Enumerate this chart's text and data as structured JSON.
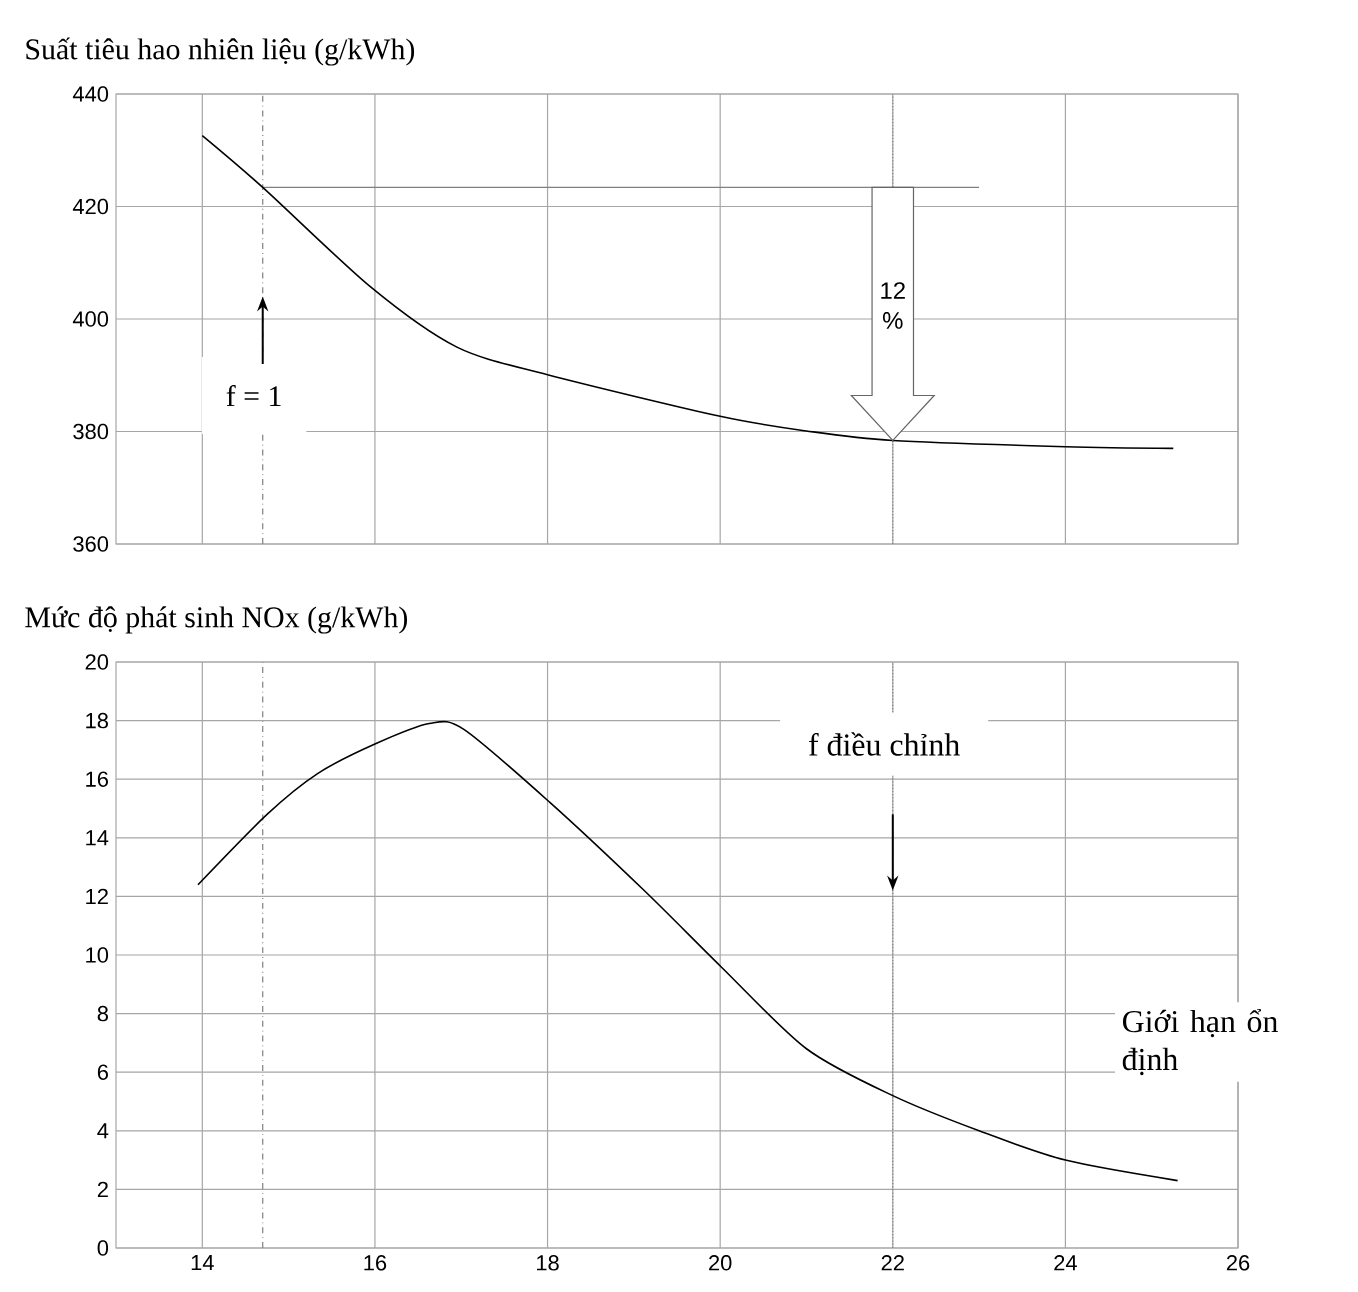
{
  "chart_data": [
    {
      "type": "line",
      "title": "Suất tiêu hao nhiên liệu (g/kWh)",
      "x": [
        14,
        14.7,
        15.95,
        16.95,
        18,
        20,
        21,
        22,
        24,
        25.25
      ],
      "values": [
        432.6,
        423.4,
        405.7,
        395,
        390.1,
        382.7,
        380.1,
        378.4,
        377.3,
        377
      ],
      "color": "#000000",
      "xlim": [
        13,
        26
      ],
      "xticks": [
        14,
        16,
        18,
        20,
        22,
        24,
        26
      ],
      "ylim": [
        360,
        440
      ],
      "yticks": [
        360,
        380,
        400,
        420,
        440
      ],
      "grid": true,
      "tick_labels": "y",
      "ref_lines": [
        {
          "axis": "x",
          "value": 14.7,
          "line_style": "dashed"
        },
        {
          "axis": "x",
          "value": 22,
          "line_style": "dotted"
        },
        {
          "axis": "y",
          "value": 423.4,
          "line_style": "solid"
        }
      ],
      "annotations": [
        {
          "text": "f = 1",
          "x": 14.7,
          "y": 404
        },
        "12 %"
      ]
    },
    {
      "type": "line",
      "title": "Mức độ phát sinh NOx (g/kWh)",
      "x": [
        13.95,
        14.75,
        15.34,
        16,
        16.63,
        17.03,
        18.03,
        19.12,
        20.01,
        21,
        22,
        23,
        24,
        25.3
      ],
      "values": [
        12.4,
        14.8,
        16.2,
        17.2,
        17.9,
        17.7,
        15.2,
        12.2,
        9.6,
        6.8,
        5.2,
        4,
        3,
        2.3
      ],
      "color": "#000000",
      "xlim": [
        13,
        26
      ],
      "xticks": [
        14,
        16,
        18,
        20,
        22,
        24,
        26
      ],
      "ylim": [
        0,
        20
      ],
      "yticks": [
        0,
        2,
        4,
        6,
        8,
        10,
        12,
        14,
        16,
        18,
        20
      ],
      "grid": true,
      "ref_lines": [
        {
          "axis": "x",
          "value": 14.7,
          "line_style": "dashed"
        },
        {
          "axis": "x",
          "value": 22,
          "line_style": "dotted"
        }
      ],
      "annotations": [
        "f điều chỉnh",
        "Giới hạn ổn định"
      ]
    }
  ]
}
